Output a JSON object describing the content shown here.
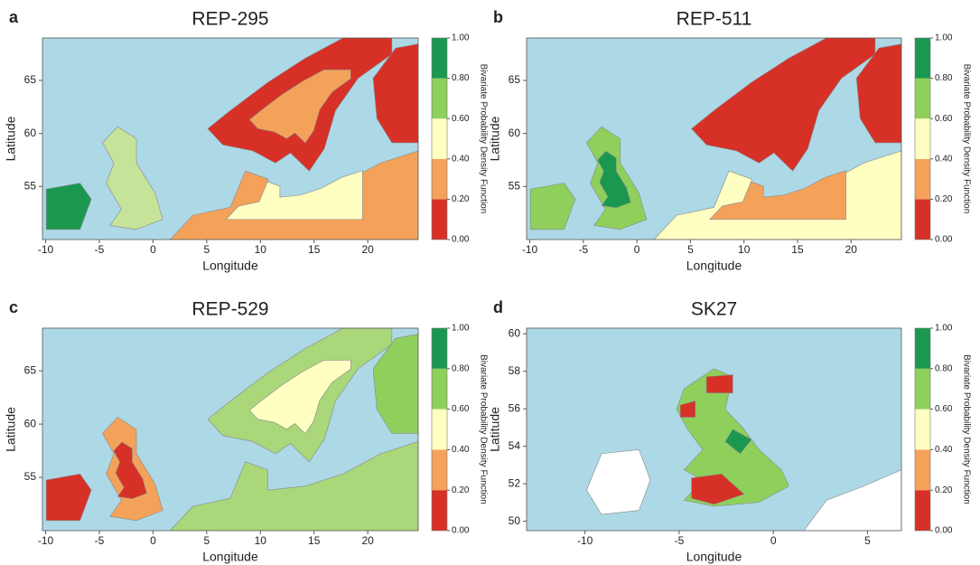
{
  "chart_data": [
    {
      "type": "map",
      "panel": "a",
      "title": "REP-295",
      "x_label": "Longitude",
      "y_label": "Latitude",
      "xlim": [
        -10.3,
        24.7
      ],
      "ylim": [
        50,
        69
      ],
      "xticks": [
        -10,
        -5,
        0,
        5,
        10,
        15,
        20
      ],
      "yticks": [
        55,
        60,
        65
      ],
      "colorbar": {
        "label": "Bivariate Probability Density Function",
        "lim": [
          0,
          1
        ],
        "ticks": [
          {
            "value": 0,
            "label": "0.00"
          },
          {
            "value": 0.2,
            "label": "0.20"
          },
          {
            "value": 0.4,
            "label": "0.40"
          },
          {
            "value": 0.6,
            "label": "0.60"
          },
          {
            "value": 0.8,
            "label": "0.80"
          },
          {
            "value": 1,
            "label": "1.00"
          }
        ],
        "colors": [
          "#d73027",
          "#f4a25a",
          "#ffffc2",
          "#8fcf5c",
          "#1a9850"
        ]
      }
    },
    {
      "type": "map",
      "panel": "b",
      "title": "REP-511",
      "x_label": "Longitude",
      "y_label": "Latitude",
      "xlim": [
        -10.3,
        24.7
      ],
      "ylim": [
        50,
        69
      ],
      "xticks": [
        -10,
        -5,
        0,
        5,
        10,
        15,
        20
      ],
      "yticks": [
        55,
        60,
        65
      ],
      "colorbar": {
        "label": "Bivariate Probability Density Function",
        "lim": [
          0,
          1
        ],
        "ticks": [
          {
            "value": 0,
            "label": "0.00"
          },
          {
            "value": 0.2,
            "label": "0.20"
          },
          {
            "value": 0.4,
            "label": "0.40"
          },
          {
            "value": 0.6,
            "label": "0.60"
          },
          {
            "value": 0.8,
            "label": "0.80"
          },
          {
            "value": 1,
            "label": "1.00"
          }
        ],
        "colors": [
          "#d73027",
          "#f4a25a",
          "#ffffc2",
          "#8fcf5c",
          "#1a9850"
        ]
      }
    },
    {
      "type": "map",
      "panel": "c",
      "title": "REP-529",
      "x_label": "Longitude",
      "y_label": "Latitude",
      "xlim": [
        -10.3,
        24.7
      ],
      "ylim": [
        50,
        69
      ],
      "xticks": [
        -10,
        -5,
        0,
        5,
        10,
        15,
        20
      ],
      "yticks": [
        55,
        60,
        65
      ],
      "colorbar": {
        "label": "Bivariate Probability Density Function",
        "lim": [
          0,
          1
        ],
        "ticks": [
          {
            "value": 0,
            "label": "0.00"
          },
          {
            "value": 0.2,
            "label": "0.20"
          },
          {
            "value": 0.4,
            "label": "0.40"
          },
          {
            "value": 0.6,
            "label": "0.60"
          },
          {
            "value": 0.8,
            "label": "0.80"
          },
          {
            "value": 1,
            "label": "1.00"
          }
        ],
        "colors": [
          "#d73027",
          "#f4a25a",
          "#ffffc2",
          "#8fcf5c",
          "#1a9850"
        ]
      }
    },
    {
      "type": "map",
      "panel": "d",
      "title": "SK27",
      "x_label": "Longitude",
      "y_label": "Latitude",
      "xlim": [
        -13.1,
        6.8
      ],
      "ylim": [
        49.5,
        60.3
      ],
      "xticks": [
        -10,
        -5,
        0,
        5
      ],
      "yticks": [
        50,
        52,
        54,
        56,
        58,
        60
      ],
      "colorbar": {
        "label": "Bivariate Probability Density Function",
        "lim": [
          0,
          1
        ],
        "ticks": [
          {
            "value": 0,
            "label": "0.00"
          },
          {
            "value": 0.2,
            "label": "0.20"
          },
          {
            "value": 0.4,
            "label": "0.40"
          },
          {
            "value": 0.6,
            "label": "0.60"
          },
          {
            "value": 0.8,
            "label": "0.80"
          },
          {
            "value": 1,
            "label": "1.00"
          }
        ],
        "colors": [
          "#d73027",
          "#f4a25a",
          "#ffffc2",
          "#8fcf5c",
          "#1a9850"
        ]
      }
    }
  ]
}
